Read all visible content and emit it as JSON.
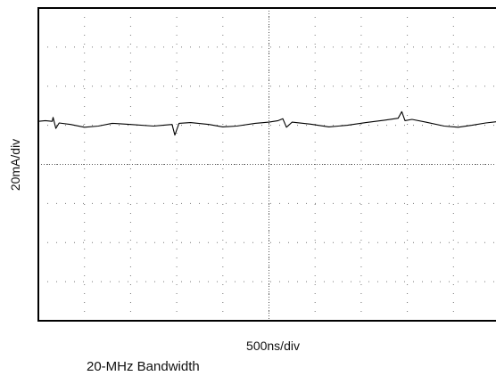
{
  "chart_data": {
    "type": "line",
    "title": "",
    "xlabel": "500ns/div",
    "ylabel": "20mA/div",
    "note": "20-MHz Bandwidth",
    "grid": true,
    "x_divisions": 10,
    "y_divisions": 8,
    "xlim": [
      0,
      10
    ],
    "ylim": [
      -4,
      4
    ],
    "x_unit": "div",
    "y_unit": "div",
    "series": [
      {
        "color": "#000000",
        "points": [
          [
            0.0,
            1.1
          ],
          [
            0.15,
            1.12
          ],
          [
            0.3,
            1.1
          ],
          [
            0.32,
            1.2
          ],
          [
            0.38,
            0.92
          ],
          [
            0.45,
            1.06
          ],
          [
            0.7,
            1.02
          ],
          [
            1.0,
            0.95
          ],
          [
            1.3,
            0.98
          ],
          [
            1.6,
            1.05
          ],
          [
            2.0,
            1.02
          ],
          [
            2.5,
            0.98
          ],
          [
            2.7,
            1.0
          ],
          [
            2.9,
            1.02
          ],
          [
            2.96,
            0.75
          ],
          [
            3.05,
            1.05
          ],
          [
            3.3,
            1.07
          ],
          [
            3.7,
            1.02
          ],
          [
            4.0,
            0.96
          ],
          [
            4.3,
            0.98
          ],
          [
            4.7,
            1.05
          ],
          [
            5.0,
            1.08
          ],
          [
            5.2,
            1.12
          ],
          [
            5.3,
            1.17
          ],
          [
            5.38,
            0.95
          ],
          [
            5.5,
            1.08
          ],
          [
            5.9,
            1.03
          ],
          [
            6.3,
            0.96
          ],
          [
            6.7,
            1.0
          ],
          [
            7.1,
            1.07
          ],
          [
            7.5,
            1.13
          ],
          [
            7.8,
            1.18
          ],
          [
            7.88,
            1.35
          ],
          [
            7.95,
            1.12
          ],
          [
            8.1,
            1.15
          ],
          [
            8.4,
            1.08
          ],
          [
            8.8,
            0.98
          ],
          [
            9.1,
            0.95
          ],
          [
            9.4,
            1.0
          ],
          [
            9.7,
            1.06
          ],
          [
            10.0,
            1.1
          ]
        ]
      }
    ]
  }
}
